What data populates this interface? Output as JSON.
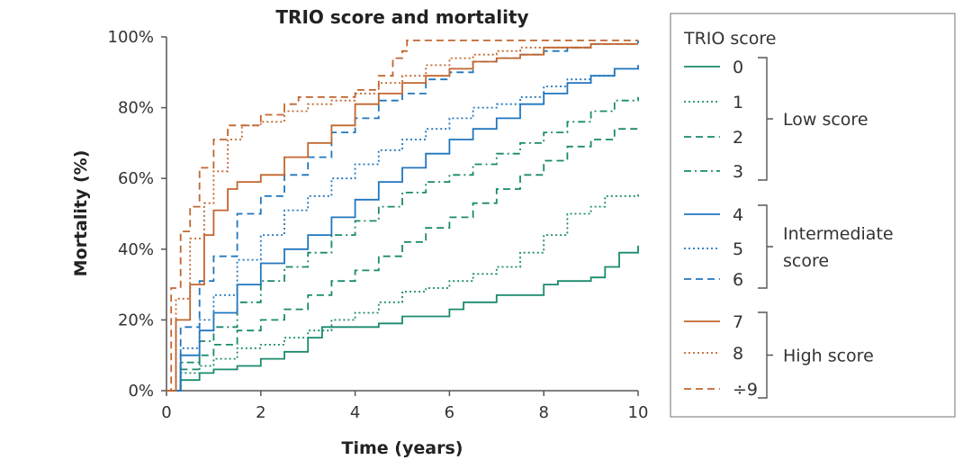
{
  "chart_data": {
    "type": "line",
    "subtype": "kaplan-meier cumulative mortality step curves",
    "title": "TRIO score and mortality",
    "xlabel": "Time (years)",
    "ylabel": "Mortality (%)",
    "xlim": [
      0,
      10
    ],
    "ylim": [
      0,
      100
    ],
    "x_ticks": [
      "0",
      "2",
      "4",
      "6",
      "8",
      "10"
    ],
    "y_ticks": [
      "0%",
      "20%",
      "40%",
      "60%",
      "80%",
      "100%"
    ],
    "legend": {
      "title": "TRIO score",
      "groups": [
        {
          "label": "Low score",
          "series": [
            "0",
            "1",
            "2",
            "3"
          ]
        },
        {
          "label": "Intermediate score",
          "label_lines": [
            "Intermediate",
            "score"
          ],
          "series": [
            "4",
            "5",
            "6"
          ]
        },
        {
          "label": "High score",
          "series": [
            "7",
            "8",
            "÷9"
          ]
        }
      ]
    },
    "series": [
      {
        "name": "0",
        "color": "#1a8a6e",
        "style": "solid",
        "points": [
          [
            0,
            0
          ],
          [
            0.3,
            3
          ],
          [
            0.7,
            5
          ],
          [
            1,
            6
          ],
          [
            1.5,
            7
          ],
          [
            2,
            9
          ],
          [
            2.5,
            11
          ],
          [
            3,
            15
          ],
          [
            3.3,
            18
          ],
          [
            4,
            18
          ],
          [
            4.5,
            19
          ],
          [
            5,
            21
          ],
          [
            6,
            23
          ],
          [
            6.3,
            25
          ],
          [
            7,
            27
          ],
          [
            7.5,
            27
          ],
          [
            8,
            30
          ],
          [
            8.3,
            31
          ],
          [
            9,
            32
          ],
          [
            9.3,
            35
          ],
          [
            9.6,
            39
          ],
          [
            10,
            41
          ]
        ]
      },
      {
        "name": "1",
        "color": "#1a8a6e",
        "style": "dotted",
        "points": [
          [
            0,
            0
          ],
          [
            0.3,
            5
          ],
          [
            0.7,
            7
          ],
          [
            1,
            9
          ],
          [
            1.5,
            12
          ],
          [
            2,
            13
          ],
          [
            2.5,
            15
          ],
          [
            3,
            17
          ],
          [
            3.5,
            20
          ],
          [
            4,
            22
          ],
          [
            4.5,
            25
          ],
          [
            5,
            28
          ],
          [
            5.5,
            29
          ],
          [
            6,
            31
          ],
          [
            6.5,
            33
          ],
          [
            7,
            35
          ],
          [
            7.5,
            39
          ],
          [
            8,
            44
          ],
          [
            8.5,
            50
          ],
          [
            9,
            52
          ],
          [
            9.3,
            55
          ],
          [
            10,
            56
          ]
        ]
      },
      {
        "name": "2",
        "color": "#1a8a6e",
        "style": "dashed",
        "points": [
          [
            0,
            0
          ],
          [
            0.3,
            6
          ],
          [
            0.7,
            10
          ],
          [
            1,
            13
          ],
          [
            1.5,
            17
          ],
          [
            2,
            20
          ],
          [
            2.5,
            23
          ],
          [
            3,
            27
          ],
          [
            3.5,
            31
          ],
          [
            4,
            34
          ],
          [
            4.5,
            38
          ],
          [
            5,
            42
          ],
          [
            5.5,
            46
          ],
          [
            6,
            49
          ],
          [
            6.5,
            53
          ],
          [
            7,
            57
          ],
          [
            7.5,
            61
          ],
          [
            8,
            65
          ],
          [
            8.5,
            69
          ],
          [
            9,
            71
          ],
          [
            9.5,
            74
          ],
          [
            10,
            75
          ]
        ]
      },
      {
        "name": "3",
        "color": "#1a8a6e",
        "style": "dashdot",
        "points": [
          [
            0,
            0
          ],
          [
            0.3,
            8
          ],
          [
            0.7,
            14
          ],
          [
            1,
            18
          ],
          [
            1.5,
            25
          ],
          [
            2,
            31
          ],
          [
            2.5,
            35
          ],
          [
            3,
            39
          ],
          [
            3.5,
            44
          ],
          [
            4,
            48
          ],
          [
            4.5,
            52
          ],
          [
            5,
            56
          ],
          [
            5.5,
            59
          ],
          [
            6,
            61
          ],
          [
            6.5,
            64
          ],
          [
            7,
            67
          ],
          [
            7.5,
            70
          ],
          [
            8,
            73
          ],
          [
            8.5,
            76
          ],
          [
            9,
            79
          ],
          [
            9.5,
            82
          ],
          [
            10,
            83
          ]
        ]
      },
      {
        "name": "4",
        "color": "#2176bf",
        "style": "solid",
        "points": [
          [
            0,
            0
          ],
          [
            0.3,
            10
          ],
          [
            0.7,
            17
          ],
          [
            1,
            22
          ],
          [
            1.5,
            30
          ],
          [
            2,
            36
          ],
          [
            2.5,
            40
          ],
          [
            3,
            44
          ],
          [
            3.5,
            49
          ],
          [
            4,
            54
          ],
          [
            4.5,
            59
          ],
          [
            5,
            63
          ],
          [
            5.5,
            67
          ],
          [
            6,
            71
          ],
          [
            6.5,
            74
          ],
          [
            7,
            77
          ],
          [
            7.5,
            81
          ],
          [
            8,
            84
          ],
          [
            8.5,
            87
          ],
          [
            9,
            89
          ],
          [
            9.5,
            91
          ],
          [
            10,
            92
          ]
        ]
      },
      {
        "name": "5",
        "color": "#2176bf",
        "style": "dotted",
        "points": [
          [
            0,
            0
          ],
          [
            0.3,
            12
          ],
          [
            0.7,
            20
          ],
          [
            1,
            27
          ],
          [
            1.5,
            37
          ],
          [
            2,
            44
          ],
          [
            2.5,
            51
          ],
          [
            3,
            55
          ],
          [
            3.5,
            60
          ],
          [
            4,
            64
          ],
          [
            4.5,
            68
          ],
          [
            5,
            71
          ],
          [
            5.5,
            74
          ],
          [
            6,
            77
          ],
          [
            6.5,
            80
          ],
          [
            7,
            81
          ],
          [
            7.5,
            83
          ],
          [
            8,
            86
          ],
          [
            8.5,
            88
          ],
          [
            9,
            89
          ],
          [
            9.5,
            91
          ],
          [
            10,
            92
          ]
        ]
      },
      {
        "name": "6",
        "color": "#2176bf",
        "style": "dashed",
        "points": [
          [
            0,
            0
          ],
          [
            0.3,
            18
          ],
          [
            0.7,
            31
          ],
          [
            1,
            38
          ],
          [
            1.5,
            50
          ],
          [
            2,
            55
          ],
          [
            2.5,
            61
          ],
          [
            3,
            66
          ],
          [
            3.5,
            73
          ],
          [
            4,
            77
          ],
          [
            4.5,
            82
          ],
          [
            5,
            84
          ],
          [
            5.5,
            88
          ],
          [
            6,
            90
          ],
          [
            6.5,
            93
          ],
          [
            7,
            94
          ],
          [
            7.5,
            95
          ],
          [
            8,
            96
          ],
          [
            8.5,
            97
          ],
          [
            9,
            98
          ],
          [
            9.5,
            98
          ],
          [
            10,
            99
          ]
        ]
      },
      {
        "name": "7",
        "color": "#c2662e",
        "style": "solid",
        "points": [
          [
            0,
            0
          ],
          [
            0.2,
            20
          ],
          [
            0.5,
            30
          ],
          [
            0.8,
            44
          ],
          [
            1,
            51
          ],
          [
            1.3,
            57
          ],
          [
            1.5,
            59
          ],
          [
            2,
            61
          ],
          [
            2.5,
            66
          ],
          [
            3,
            70
          ],
          [
            3.5,
            75
          ],
          [
            4,
            81
          ],
          [
            4.5,
            84
          ],
          [
            5,
            87
          ],
          [
            5.5,
            89
          ],
          [
            6,
            91
          ],
          [
            6.5,
            93
          ],
          [
            7,
            94
          ],
          [
            7.5,
            95
          ],
          [
            8,
            97
          ],
          [
            8.5,
            97
          ],
          [
            9,
            98
          ],
          [
            10,
            98
          ]
        ]
      },
      {
        "name": "8",
        "color": "#c2662e",
        "style": "dotted",
        "points": [
          [
            0,
            0
          ],
          [
            0.2,
            26
          ],
          [
            0.5,
            43
          ],
          [
            0.8,
            53
          ],
          [
            1,
            62
          ],
          [
            1.3,
            71
          ],
          [
            1.6,
            75
          ],
          [
            2,
            76
          ],
          [
            2.5,
            79
          ],
          [
            3,
            81
          ],
          [
            3.5,
            82
          ],
          [
            4,
            84
          ],
          [
            4.5,
            87
          ],
          [
            5,
            89
          ],
          [
            5.5,
            92
          ],
          [
            6,
            94
          ],
          [
            6.5,
            95
          ],
          [
            7,
            96
          ],
          [
            7.5,
            97
          ],
          [
            8,
            97
          ],
          [
            9,
            98
          ],
          [
            10,
            98
          ]
        ]
      },
      {
        "name": "÷9",
        "color": "#c2662e",
        "style": "dashed",
        "points": [
          [
            0,
            0
          ],
          [
            0.1,
            29
          ],
          [
            0.3,
            45
          ],
          [
            0.5,
            52
          ],
          [
            0.7,
            63
          ],
          [
            1,
            71
          ],
          [
            1.3,
            75
          ],
          [
            1.8,
            75
          ],
          [
            2,
            78
          ],
          [
            2.5,
            81
          ],
          [
            2.8,
            83
          ],
          [
            3.5,
            83
          ],
          [
            4,
            85
          ],
          [
            4.5,
            89
          ],
          [
            4.8,
            94
          ],
          [
            5,
            96
          ],
          [
            5.1,
            99
          ],
          [
            6,
            99
          ],
          [
            10,
            99
          ]
        ]
      }
    ]
  }
}
